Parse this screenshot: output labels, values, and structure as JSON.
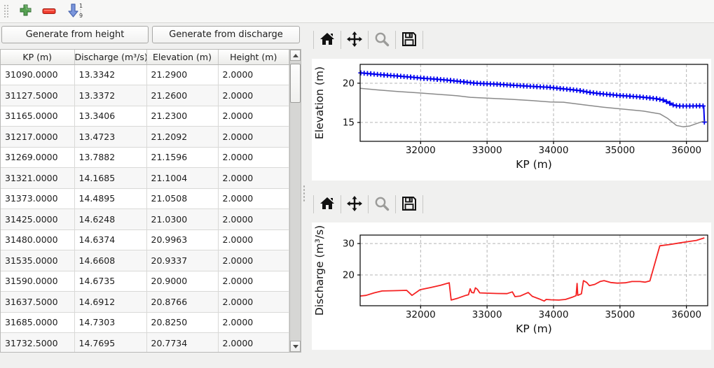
{
  "main_toolbar": {
    "icons": [
      {
        "name": "add",
        "color": "#56a152"
      },
      {
        "name": "remove",
        "color": "#ef3b2d"
      },
      {
        "name": "sort-ascending",
        "color": "#7b96dc",
        "labels": [
          "1",
          "9"
        ]
      }
    ]
  },
  "buttons": {
    "generate_height": "Generate from height",
    "generate_discharge": "Generate from discharge"
  },
  "table": {
    "columns": [
      "KP (m)",
      "Discharge (m³/s)",
      "Elevation (m)",
      "Height (m)"
    ],
    "rows": [
      [
        "31090.0000",
        "13.3342",
        "21.2900",
        "2.0000"
      ],
      [
        "31127.5000",
        "13.3372",
        "21.2600",
        "2.0000"
      ],
      [
        "31165.0000",
        "13.3406",
        "21.2300",
        "2.0000"
      ],
      [
        "31217.0000",
        "13.4723",
        "21.2092",
        "2.0000"
      ],
      [
        "31269.0000",
        "13.7882",
        "21.1596",
        "2.0000"
      ],
      [
        "31321.0000",
        "14.1685",
        "21.1004",
        "2.0000"
      ],
      [
        "31373.0000",
        "14.4895",
        "21.0508",
        "2.0000"
      ],
      [
        "31425.0000",
        "14.6248",
        "21.0300",
        "2.0000"
      ],
      [
        "31480.0000",
        "14.6374",
        "20.9963",
        "2.0000"
      ],
      [
        "31535.0000",
        "14.6608",
        "20.9337",
        "2.0000"
      ],
      [
        "31590.0000",
        "14.6735",
        "20.9000",
        "2.0000"
      ],
      [
        "31637.5000",
        "14.6912",
        "20.8766",
        "2.0000"
      ],
      [
        "31685.0000",
        "14.7303",
        "20.8250",
        "2.0000"
      ],
      [
        "31732.5000",
        "14.7695",
        "20.7734",
        "2.0000"
      ]
    ]
  },
  "plot_toolbar": {
    "icons": [
      "home",
      "pan",
      "zoom",
      "save"
    ]
  },
  "chart_data": [
    {
      "type": "line",
      "xlabel": "KP (m)",
      "ylabel": "Elevation (m)",
      "xlim": [
        31090,
        36320
      ],
      "ylim": [
        12.6,
        22.4
      ],
      "xticks": [
        32000,
        33000,
        34000,
        35000,
        36000
      ],
      "yticks": [
        15,
        20
      ],
      "grid": true,
      "legend": "none",
      "series": [
        {
          "name": "water-elevation",
          "color": "#0000ee",
          "width": 2,
          "marker": "+",
          "marker_every_m": 50,
          "points": [
            [
              31090,
              21.32
            ],
            [
              31250,
              21.2
            ],
            [
              31450,
              21.05
            ],
            [
              31650,
              20.92
            ],
            [
              31850,
              20.78
            ],
            [
              32050,
              20.62
            ],
            [
              32250,
              20.5
            ],
            [
              32450,
              20.35
            ],
            [
              32650,
              20.17
            ],
            [
              32800,
              20.02
            ],
            [
              32950,
              19.95
            ],
            [
              33150,
              19.87
            ],
            [
              33350,
              19.76
            ],
            [
              33550,
              19.66
            ],
            [
              33750,
              19.56
            ],
            [
              33950,
              19.47
            ],
            [
              34100,
              19.32
            ],
            [
              34250,
              19.2
            ],
            [
              34400,
              19.05
            ],
            [
              34550,
              18.82
            ],
            [
              34700,
              18.67
            ],
            [
              34850,
              18.55
            ],
            [
              35000,
              18.43
            ],
            [
              35150,
              18.35
            ],
            [
              35300,
              18.25
            ],
            [
              35450,
              18.12
            ],
            [
              35550,
              18.02
            ],
            [
              35650,
              17.85
            ],
            [
              35750,
              17.45
            ],
            [
              35820,
              17.15
            ],
            [
              35900,
              17.1
            ],
            [
              36050,
              17.1
            ],
            [
              36200,
              17.12
            ],
            [
              36260,
              17.1
            ],
            [
              36270,
              15.05
            ]
          ]
        },
        {
          "name": "bed-elevation",
          "color": "#8a8a8a",
          "width": 1.5,
          "marker": "none",
          "points": [
            [
              31090,
              19.35
            ],
            [
              31350,
              19.15
            ],
            [
              31650,
              18.95
            ],
            [
              31950,
              18.78
            ],
            [
              32250,
              18.6
            ],
            [
              32550,
              18.4
            ],
            [
              32750,
              18.2
            ],
            [
              33050,
              18.08
            ],
            [
              33350,
              17.95
            ],
            [
              33650,
              17.8
            ],
            [
              33950,
              17.62
            ],
            [
              34150,
              17.58
            ],
            [
              34450,
              17.25
            ],
            [
              34750,
              16.95
            ],
            [
              35050,
              16.7
            ],
            [
              35350,
              16.45
            ],
            [
              35600,
              16.1
            ],
            [
              35720,
              15.5
            ],
            [
              35850,
              14.62
            ],
            [
              35950,
              14.45
            ],
            [
              36050,
              14.55
            ],
            [
              36150,
              14.85
            ],
            [
              36270,
              15.2
            ]
          ]
        }
      ]
    },
    {
      "type": "line",
      "xlabel": "KP (m)",
      "ylabel": "Discharge (m³/s)",
      "xlim": [
        31090,
        36320
      ],
      "ylim": [
        10.2,
        32.7
      ],
      "xticks": [
        32000,
        33000,
        34000,
        35000,
        36000
      ],
      "yticks": [
        20,
        30
      ],
      "grid": true,
      "legend": "none",
      "series": [
        {
          "name": "discharge",
          "color": "#f52222",
          "width": 1.8,
          "marker": "none",
          "points": [
            [
              31090,
              13.3
            ],
            [
              31180,
              13.5
            ],
            [
              31300,
              14.3
            ],
            [
              31420,
              14.9
            ],
            [
              31600,
              15.0
            ],
            [
              31790,
              15.1
            ],
            [
              31870,
              13.5
            ],
            [
              31990,
              15.3
            ],
            [
              32150,
              16.0
            ],
            [
              32300,
              16.7
            ],
            [
              32430,
              17.5
            ],
            [
              32460,
              12.0
            ],
            [
              32560,
              12.6
            ],
            [
              32680,
              13.5
            ],
            [
              32720,
              13.7
            ],
            [
              32745,
              15.6
            ],
            [
              32770,
              14.4
            ],
            [
              32800,
              14.3
            ],
            [
              32825,
              15.9
            ],
            [
              32855,
              15.4
            ],
            [
              32890,
              14.3
            ],
            [
              32990,
              14.2
            ],
            [
              33150,
              14.1
            ],
            [
              33300,
              14.05
            ],
            [
              33380,
              14.6
            ],
            [
              33420,
              13.1
            ],
            [
              33500,
              13.3
            ],
            [
              33620,
              14.4
            ],
            [
              33680,
              13.2
            ],
            [
              33780,
              12.4
            ],
            [
              33860,
              11.7
            ],
            [
              33890,
              12.2
            ],
            [
              33960,
              12.1
            ],
            [
              34080,
              12.0
            ],
            [
              34180,
              12.2
            ],
            [
              34280,
              12.9
            ],
            [
              34340,
              13.4
            ],
            [
              34355,
              17.3
            ],
            [
              34365,
              13.5
            ],
            [
              34420,
              14.0
            ],
            [
              34450,
              18.2
            ],
            [
              34500,
              17.6
            ],
            [
              34540,
              16.6
            ],
            [
              34620,
              17.0
            ],
            [
              34700,
              17.9
            ],
            [
              34760,
              18.2
            ],
            [
              34860,
              17.6
            ],
            [
              34960,
              17.4
            ],
            [
              35080,
              17.5
            ],
            [
              35180,
              17.9
            ],
            [
              35300,
              17.9
            ],
            [
              35380,
              17.7
            ],
            [
              35450,
              18.1
            ],
            [
              35600,
              29.3
            ],
            [
              35750,
              29.7
            ],
            [
              35900,
              30.2
            ],
            [
              36050,
              30.7
            ],
            [
              36150,
              31.0
            ],
            [
              36270,
              31.8
            ]
          ]
        }
      ]
    }
  ]
}
